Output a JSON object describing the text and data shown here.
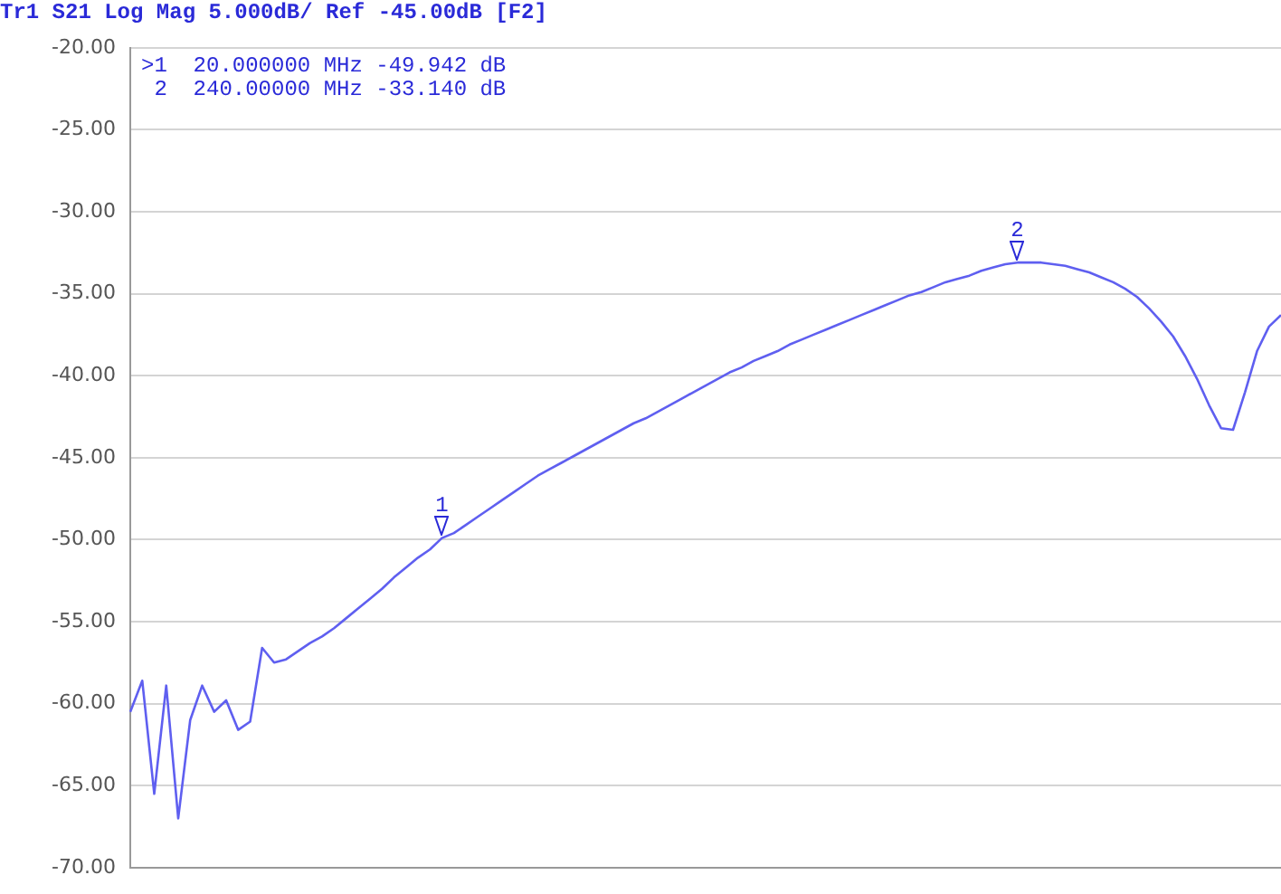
{
  "chart_data": {
    "type": "line",
    "title": "Tr1 S21 Log Mag 5.000dB/ Ref -45.00dB [F2]",
    "annotations": [
      ">1  20.000000 MHz -49.942 dB",
      " 2  240.00000 MHz -33.140 dB",
      {
        "text": "1",
        "y": -49.9
      },
      {
        "text": "2",
        "y": -33.1
      }
    ],
    "categories": [
      null,
      null,
      null,
      null,
      null,
      null,
      null,
      null,
      null,
      null,
      null,
      null,
      null,
      null,
      null,
      null,
      null,
      null,
      null,
      null,
      null,
      null,
      null,
      null,
      null,
      null,
      null,
      null,
      null,
      null,
      null,
      null,
      null,
      null,
      null,
      null,
      null,
      null,
      null,
      null,
      null,
      null,
      null,
      null,
      null,
      null,
      null,
      null,
      null,
      null,
      null,
      null,
      null,
      null,
      null,
      null,
      null,
      null,
      null,
      null,
      null,
      null,
      null,
      null,
      null,
      null,
      null,
      null,
      null,
      null,
      null,
      null,
      null,
      null,
      null,
      null,
      null,
      null,
      null,
      null,
      null,
      null,
      null,
      null,
      null,
      null,
      null,
      null,
      null,
      null,
      null,
      null,
      null,
      null,
      null,
      null,
      null
    ],
    "series": [
      {
        "color": "#5f5ff0",
        "values": [
          -60.5,
          -58.6,
          -65.5,
          -58.9,
          -67.0,
          -61.0,
          -58.9,
          -60.5,
          -59.8,
          -61.6,
          -61.1,
          -56.6,
          -57.5,
          -57.3,
          -56.8,
          -56.3,
          -55.9,
          -55.4,
          -54.8,
          -54.2,
          -53.6,
          -53.0,
          -52.3,
          -51.7,
          -51.1,
          -50.6,
          -49.9,
          -49.6,
          -49.1,
          -48.6,
          -48.1,
          -47.6,
          -47.1,
          -46.6,
          -46.1,
          -45.7,
          -45.3,
          -44.9,
          -44.5,
          -44.1,
          -43.7,
          -43.3,
          -42.9,
          -42.6,
          -42.2,
          -41.8,
          -41.4,
          -41.0,
          -40.6,
          -40.2,
          -39.8,
          -39.5,
          -39.1,
          -38.8,
          -38.5,
          -38.1,
          -37.8,
          -37.5,
          -37.2,
          -36.9,
          -36.6,
          -36.3,
          -36.0,
          -35.7,
          -35.4,
          -35.1,
          -34.9,
          -34.6,
          -34.3,
          -34.1,
          -33.9,
          -33.6,
          -33.4,
          -33.2,
          -33.1,
          -33.1,
          -33.1,
          -33.2,
          -33.3,
          -33.5,
          -33.7,
          -34.0,
          -34.3,
          -34.7,
          -35.2,
          -35.9,
          -36.7,
          -37.6,
          -38.8,
          -40.2,
          -41.8,
          -43.2,
          -43.3,
          -41.0,
          -38.5,
          -37.0,
          -36.3
        ]
      }
    ],
    "ylim": [
      -70,
      -20
    ],
    "yticks": [
      {
        "value": -20,
        "label": "-20.00"
      },
      {
        "value": -25,
        "label": "-25.00"
      },
      {
        "value": -30,
        "label": "-30.00"
      },
      {
        "value": -35,
        "label": "-35.00"
      },
      {
        "value": -40,
        "label": "-40.00"
      },
      {
        "value": -45,
        "label": "-45.00"
      },
      {
        "value": -50,
        "label": "-50.00"
      },
      {
        "value": -55,
        "label": "-55.00"
      },
      {
        "value": -60,
        "label": "-60.00"
      },
      {
        "value": -65,
        "label": "-65.00"
      },
      {
        "value": -70,
        "label": "-70.00"
      }
    ],
    "tick_labels": "y",
    "grid": "y",
    "legend": false,
    "marker": "none",
    "line_style": "solid"
  }
}
